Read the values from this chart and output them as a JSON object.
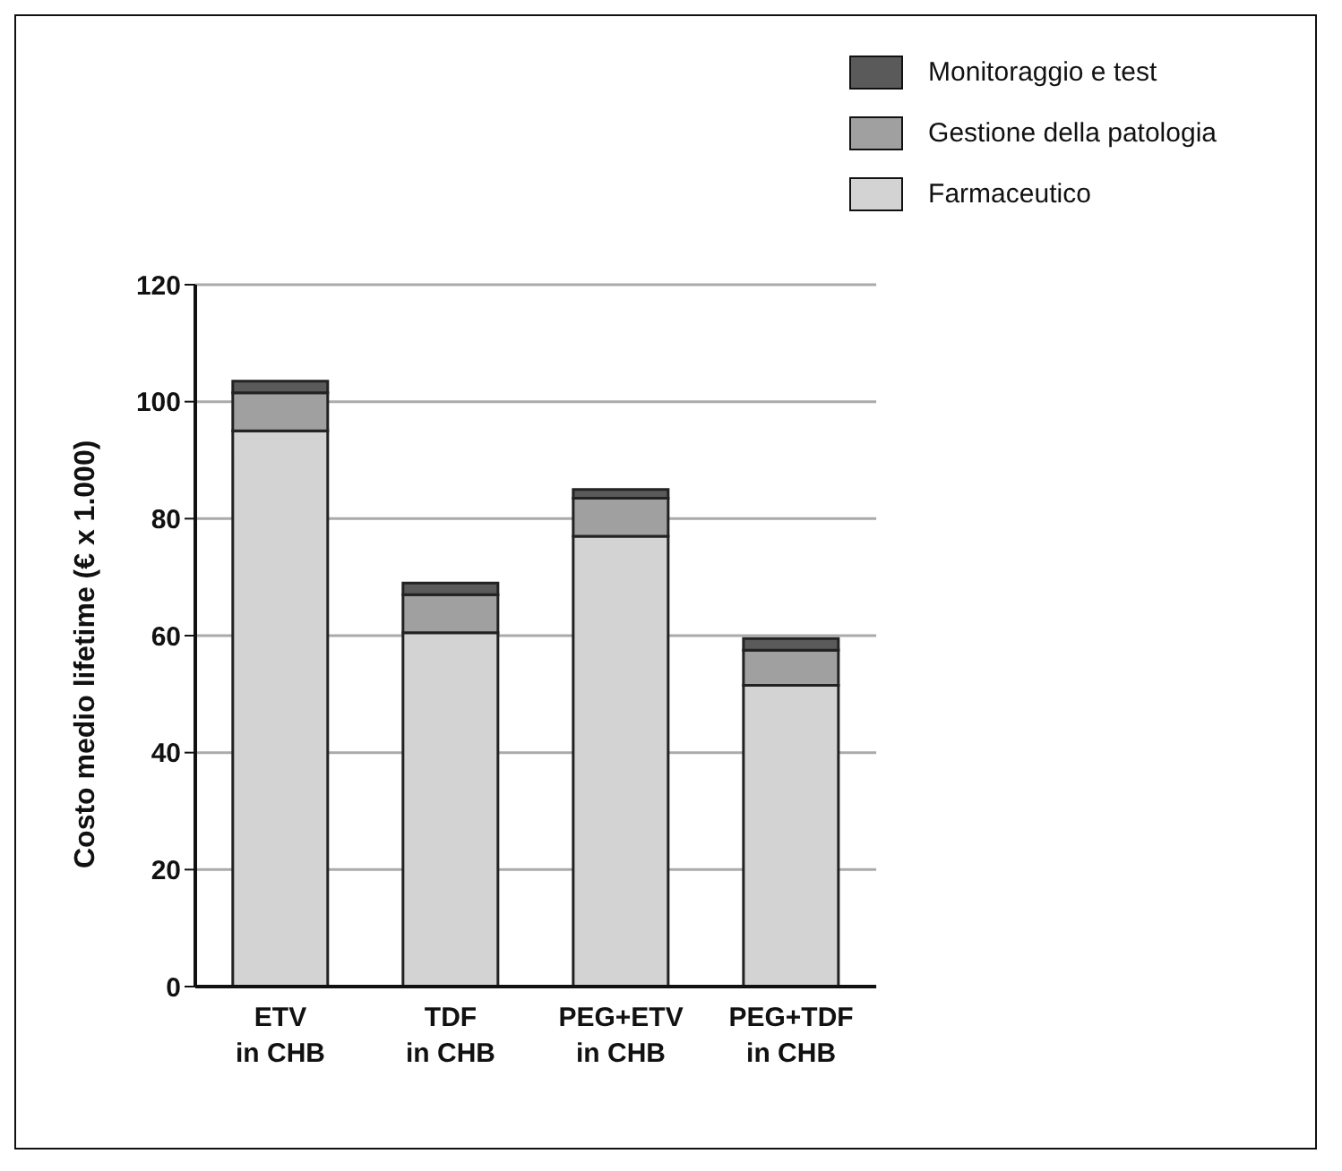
{
  "chart_data": {
    "type": "bar",
    "stacked": true,
    "ylabel": "Costo medio lifetime (€ x 1.000)",
    "categories": [
      "ETV\nin CHB",
      "TDF\nin CHB",
      "PEG+ETV\nin CHB",
      "PEG+TDF\nin CHB"
    ],
    "series": [
      {
        "name": "Farmaceutico",
        "color": "#d3d3d3",
        "values": [
          95,
          60.5,
          77,
          51.5
        ]
      },
      {
        "name": "Gestione della patologia",
        "color": "#a0a0a0",
        "values": [
          6.5,
          6.5,
          6.5,
          6
        ]
      },
      {
        "name": "Monitoraggio e test",
        "color": "#5a5a5a",
        "values": [
          2,
          2,
          1.5,
          2
        ]
      }
    ],
    "ylim": [
      0,
      120
    ],
    "yticks": [
      0,
      20,
      40,
      60,
      80,
      100,
      120
    ],
    "grid": "y",
    "legend": "top right"
  }
}
